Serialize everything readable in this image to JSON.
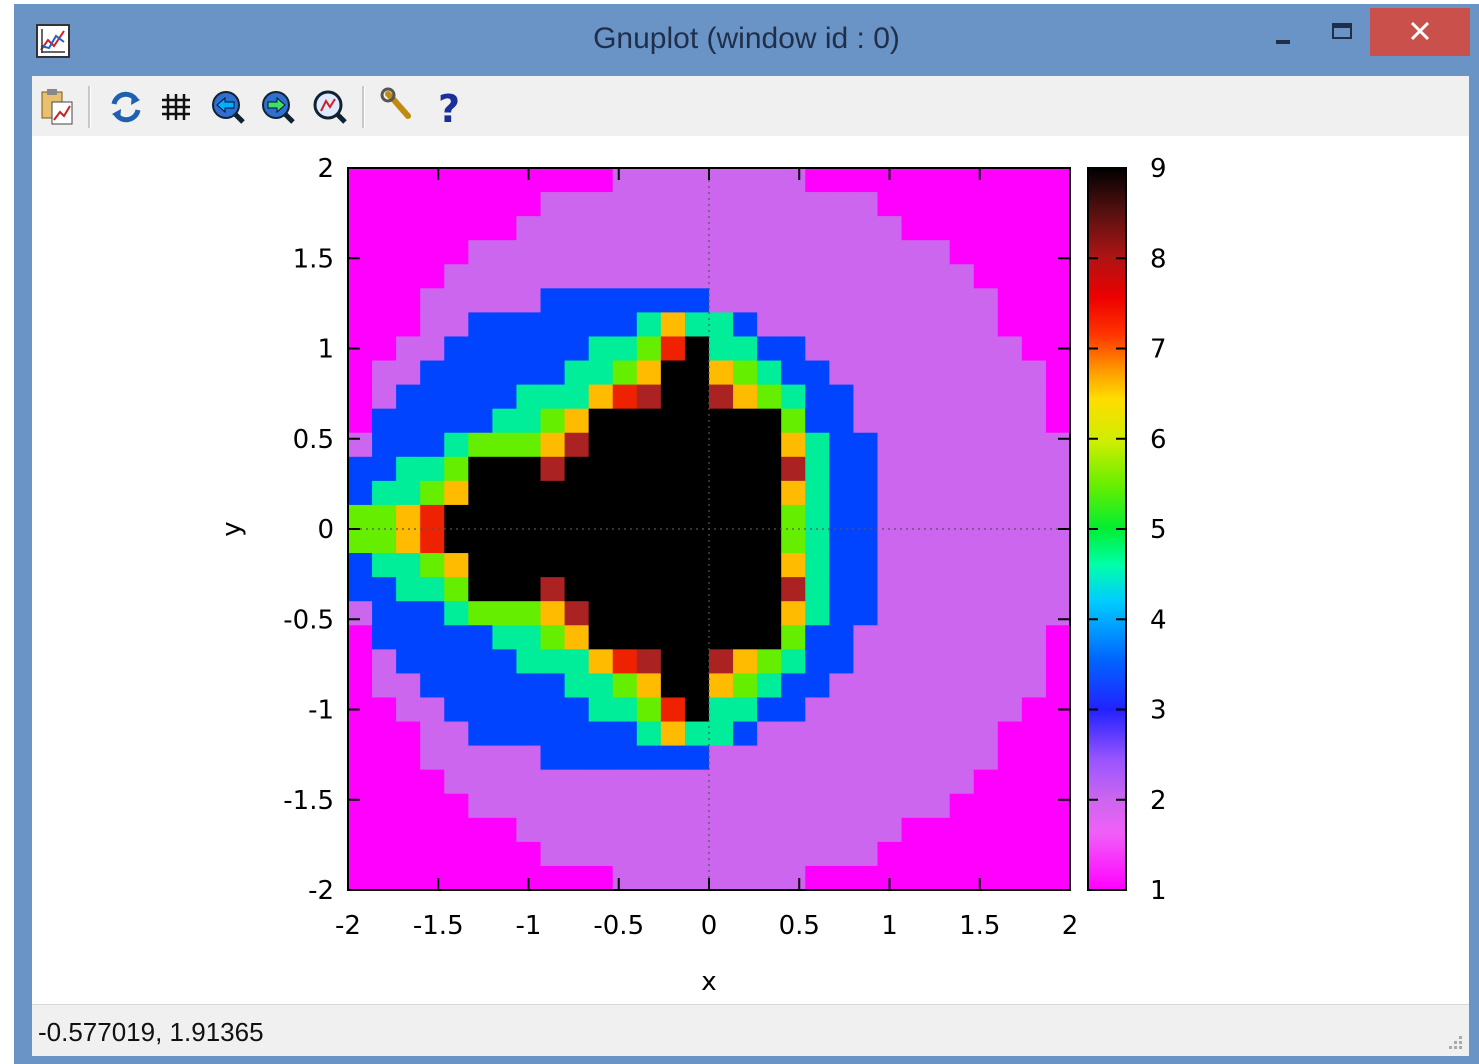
{
  "window": {
    "title": "Gnuplot (window id : 0)",
    "icons": [
      "gnuplot-app-icon",
      "minimize-icon",
      "maximize-icon",
      "close-icon"
    ],
    "close_color": "#c9504b",
    "frame_color": "#6a93c6"
  },
  "toolbar": {
    "items": [
      {
        "name": "copy-to-clipboard-icon"
      },
      {
        "name": "replot-icon"
      },
      {
        "name": "grid-icon"
      },
      {
        "name": "previous-zoom-icon"
      },
      {
        "name": "next-zoom-icon"
      },
      {
        "name": "autoscale-icon"
      },
      {
        "name": "options-icon"
      },
      {
        "name": "help-icon"
      }
    ]
  },
  "status": {
    "coordinates": "-0.577019,  1.91365"
  },
  "chart_data": {
    "type": "heatmap",
    "title": "",
    "xlabel": "x",
    "ylabel": "y",
    "xlim": [
      -2,
      2
    ],
    "ylim": [
      -2,
      2
    ],
    "cblim": [
      1,
      9
    ],
    "x_ticks": [
      "-2",
      "-1.5",
      "-1",
      "-0.5",
      "0",
      "0.5",
      "1",
      "1.5",
      "2"
    ],
    "y_ticks": [
      "2",
      "1.5",
      "1",
      "0.5",
      "0",
      "-0.5",
      "-1",
      "-1.5",
      "-2"
    ],
    "cb_ticks": [
      "9",
      "8",
      "7",
      "6",
      "5",
      "4",
      "3",
      "2",
      "1"
    ],
    "grid": false,
    "zero_axes": true,
    "palette": "rainbow",
    "grid_size": [
      30,
      30
    ],
    "description": "Mandelbrot escape iteration count, max 9 iterations",
    "color_by_value": {
      "1": "#ff00ff",
      "2": "#cc66ee",
      "3": "#0044ff",
      "4": "#00ee99",
      "5": "#66ee00",
      "6": "#ffbb00",
      "7": "#ee2200",
      "8": "#aa2222",
      "9": "#000000"
    }
  }
}
